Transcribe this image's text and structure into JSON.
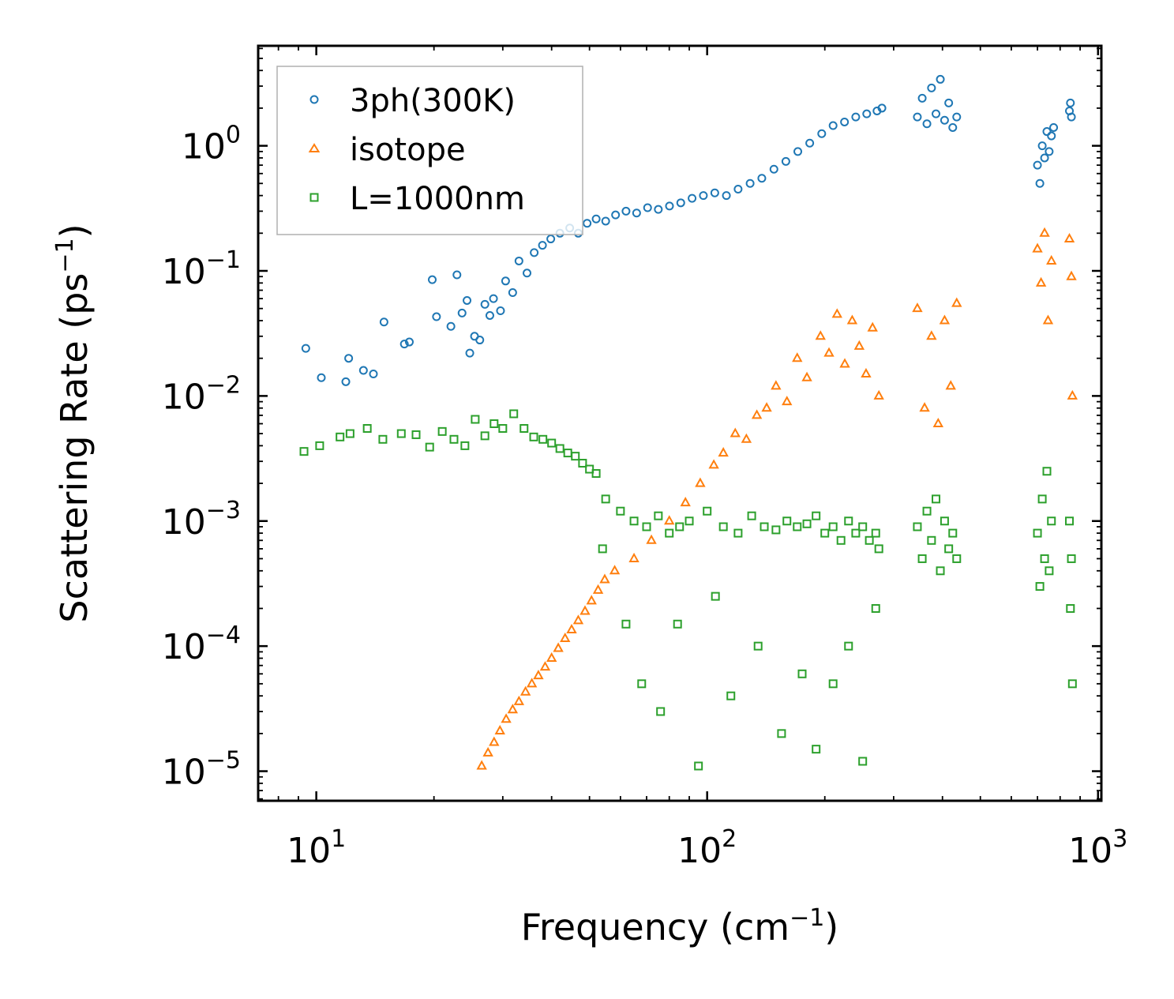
{
  "chart_data": {
    "type": "scatter",
    "title": "",
    "xlabel": "Frequency (cm",
    "xlabel_sup": "−1",
    "xlabel_end": ")",
    "ylabel": "Scattering Rate (ps",
    "ylabel_sup": "−1",
    "ylabel_end": ")",
    "xscale": "log",
    "yscale": "log",
    "xlim": [
      7.1,
      1020
    ],
    "ylim": [
      5.8e-06,
      6.3
    ],
    "grid": false,
    "legend_position": "top-left",
    "x_ticks": [
      {
        "value": 10,
        "base": "10",
        "exp": "1"
      },
      {
        "value": 100,
        "base": "10",
        "exp": "2"
      },
      {
        "value": 1000,
        "base": "10",
        "exp": "3"
      }
    ],
    "y_ticks": [
      {
        "value": 1,
        "base": "10",
        "exp": "0"
      },
      {
        "value": 0.1,
        "base": "10",
        "exp": "−1"
      },
      {
        "value": 0.01,
        "base": "10",
        "exp": "−2"
      },
      {
        "value": 0.001,
        "base": "10",
        "exp": "−3"
      },
      {
        "value": 0.0001,
        "base": "10",
        "exp": "−4"
      },
      {
        "value": 1e-05,
        "base": "10",
        "exp": "−5"
      }
    ],
    "series": [
      {
        "name": "3ph(300K)",
        "marker": "circle",
        "color": "#1f77b4",
        "x": [
          9.4,
          10.3,
          11.9,
          12.1,
          13.2,
          14.0,
          14.9,
          16.8,
          17.3,
          19.8,
          20.3,
          22.1,
          22.9,
          23.6,
          24.3,
          24.7,
          25.4,
          26.2,
          27.0,
          27.8,
          28.4,
          29.6,
          30.5,
          31.8,
          33.0,
          34.6,
          36.1,
          37.9,
          39.8,
          42.0,
          44.5,
          46.8,
          49.3,
          52.0,
          55.0,
          58.3,
          62.0,
          66.0,
          70.4,
          75.0,
          80.1,
          85.6,
          91.5,
          97.8,
          104.6,
          112.0,
          120.0,
          128.8,
          138.0,
          148.2,
          159.0,
          170.6,
          183.0,
          196.4,
          210.0,
          224.6,
          240.0,
          256.0,
          272.0,
          280.0,
          345.0,
          355.0,
          365.0,
          375.0,
          385.0,
          395.0,
          405.0,
          415.0,
          425.0,
          435.0,
          700.0,
          710.0,
          720.0,
          730.0,
          740.0,
          750.0,
          760.0,
          770.0,
          845.0,
          850.0,
          855.0
        ],
        "y": [
          0.024,
          0.014,
          0.013,
          0.02,
          0.016,
          0.015,
          0.039,
          0.026,
          0.027,
          0.085,
          0.043,
          0.036,
          0.093,
          0.046,
          0.058,
          0.022,
          0.03,
          0.028,
          0.054,
          0.044,
          0.06,
          0.048,
          0.083,
          0.067,
          0.12,
          0.096,
          0.14,
          0.16,
          0.18,
          0.2,
          0.22,
          0.2,
          0.24,
          0.26,
          0.25,
          0.28,
          0.3,
          0.29,
          0.32,
          0.31,
          0.33,
          0.35,
          0.38,
          0.4,
          0.42,
          0.4,
          0.45,
          0.5,
          0.55,
          0.65,
          0.75,
          0.9,
          1.05,
          1.25,
          1.45,
          1.55,
          1.7,
          1.8,
          1.9,
          2.0,
          1.7,
          2.4,
          1.5,
          2.9,
          1.8,
          3.4,
          1.6,
          2.2,
          1.4,
          1.7,
          0.7,
          0.5,
          1.0,
          0.8,
          1.3,
          0.9,
          1.2,
          1.4,
          1.9,
          2.2,
          1.7
        ]
      },
      {
        "name": "isotope",
        "marker": "triangle",
        "color": "#ff7f0e",
        "x": [
          26.5,
          27.5,
          28.5,
          29.5,
          30.6,
          31.8,
          33.0,
          34.3,
          35.6,
          37.0,
          38.5,
          40.0,
          41.6,
          43.3,
          45.0,
          46.8,
          48.7,
          50.6,
          52.6,
          54.7,
          58.0,
          65.0,
          72.0,
          80.0,
          88.0,
          96.0,
          104.0,
          110.0,
          118.0,
          126.0,
          134.0,
          142.0,
          150.0,
          160.0,
          170.0,
          180.0,
          195.0,
          205.0,
          215.0,
          225.0,
          235.0,
          245.0,
          255.0,
          265.0,
          275.0,
          345.0,
          360.0,
          375.0,
          390.0,
          405.0,
          420.0,
          435.0,
          700.0,
          715.0,
          730.0,
          745.0,
          760.0,
          845.0,
          855.0,
          860.0
        ],
        "y": [
          1.1e-05,
          1.4e-05,
          1.7e-05,
          2.1e-05,
          2.6e-05,
          3.1e-05,
          3.6e-05,
          4.3e-05,
          5e-05,
          5.8e-05,
          6.8e-05,
          8e-05,
          9.6e-05,
          0.000115,
          0.000135,
          0.00016,
          0.00019,
          0.00023,
          0.00028,
          0.00034,
          0.0004,
          0.0005,
          0.0007,
          0.001,
          0.0014,
          0.002,
          0.0028,
          0.0035,
          0.005,
          0.0045,
          0.007,
          0.008,
          0.012,
          0.009,
          0.02,
          0.014,
          0.03,
          0.022,
          0.045,
          0.018,
          0.04,
          0.025,
          0.015,
          0.035,
          0.01,
          0.05,
          0.008,
          0.03,
          0.006,
          0.04,
          0.012,
          0.055,
          0.15,
          0.08,
          0.2,
          0.04,
          0.12,
          0.18,
          0.09,
          0.01
        ]
      },
      {
        "name": "L=1000nm",
        "marker": "square",
        "color": "#2ca02c",
        "x": [
          9.3,
          10.2,
          11.5,
          12.2,
          13.5,
          14.8,
          16.5,
          18.0,
          19.5,
          21.0,
          22.5,
          24.0,
          25.5,
          27.0,
          28.5,
          30.0,
          32.0,
          34.0,
          36.0,
          38.0,
          40.0,
          42.0,
          44.0,
          46.0,
          48.0,
          50.0,
          52.0,
          55.0,
          60.0,
          65.0,
          70.0,
          75.0,
          80.0,
          85.0,
          90.0,
          100.0,
          110.0,
          120.0,
          130.0,
          140.0,
          150.0,
          160.0,
          170.0,
          180.0,
          190.0,
          200.0,
          210.0,
          220.0,
          230.0,
          240.0,
          250.0,
          260.0,
          270.0,
          275.0,
          345.0,
          355.0,
          365.0,
          375.0,
          385.0,
          395.0,
          405.0,
          415.0,
          425.0,
          435.0,
          700.0,
          710.0,
          720.0,
          730.0,
          740.0,
          750.0,
          760.0,
          845.0,
          850.0,
          855.0,
          860.0,
          54.0,
          62.0,
          68.0,
          76.0,
          84.0,
          95.0,
          105.0,
          115.0,
          135.0,
          155.0,
          175.0,
          190.0,
          210.0,
          230.0,
          250.0,
          270.0
        ],
        "y": [
          0.0036,
          0.004,
          0.0047,
          0.005,
          0.0055,
          0.0045,
          0.005,
          0.0049,
          0.0039,
          0.0052,
          0.0045,
          0.004,
          0.0065,
          0.0048,
          0.006,
          0.0055,
          0.0072,
          0.0055,
          0.0047,
          0.0045,
          0.0042,
          0.0038,
          0.0035,
          0.0033,
          0.0029,
          0.0026,
          0.0024,
          0.0015,
          0.0012,
          0.001,
          0.0009,
          0.0011,
          0.0008,
          0.0009,
          0.001,
          0.0012,
          0.0009,
          0.0008,
          0.0011,
          0.0009,
          0.00085,
          0.001,
          0.0009,
          0.00095,
          0.0011,
          0.0008,
          0.0009,
          0.0007,
          0.001,
          0.0008,
          0.0009,
          0.0007,
          0.0008,
          0.0006,
          0.0009,
          0.0005,
          0.0012,
          0.0007,
          0.0015,
          0.0004,
          0.001,
          0.0006,
          0.0008,
          0.0005,
          0.0008,
          0.0003,
          0.0015,
          0.0005,
          0.0025,
          0.0004,
          0.001,
          0.001,
          0.0002,
          0.0005,
          5e-05,
          0.0006,
          0.00015,
          5e-05,
          3e-05,
          0.00015,
          1.1e-05,
          0.00025,
          4e-05,
          0.0001,
          2e-05,
          6e-05,
          1.5e-05,
          5e-05,
          0.0001,
          1.2e-05,
          0.0002
        ]
      }
    ]
  }
}
